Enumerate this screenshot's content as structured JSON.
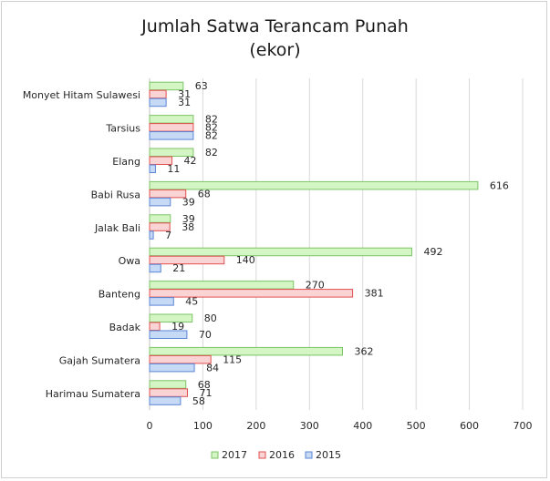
{
  "chart_data": {
    "type": "bar",
    "orientation": "horizontal",
    "title": "Jumlah Satwa Terancam Punah",
    "subtitle": "(ekor)",
    "categories": [
      "Monyet Hitam Sulawesi",
      "Tarsius",
      "Elang",
      "Babi Rusa",
      "Jalak Bali",
      "Owa",
      "Banteng",
      "Badak",
      "Gajah Sumatera",
      "Harimau Sumatera"
    ],
    "series": [
      {
        "name": "2017",
        "color": "#d4f5c4",
        "stroke": "#7cc466",
        "values": [
          63,
          82,
          82,
          616,
          39,
          492,
          270,
          80,
          362,
          68
        ]
      },
      {
        "name": "2016",
        "color": "#fad4d4",
        "stroke": "#e05050",
        "values": [
          31,
          82,
          42,
          68,
          38,
          140,
          381,
          19,
          115,
          71
        ]
      },
      {
        "name": "2015",
        "color": "#c6d9f5",
        "stroke": "#5b86d6",
        "values": [
          31,
          82,
          11,
          39,
          7,
          21,
          45,
          70,
          84,
          58
        ]
      }
    ],
    "xlim": [
      0,
      700
    ],
    "xticks": [
      0,
      100,
      200,
      300,
      400,
      500,
      600,
      700
    ],
    "grid": true,
    "legend_position": "bottom",
    "data_labels": true
  }
}
